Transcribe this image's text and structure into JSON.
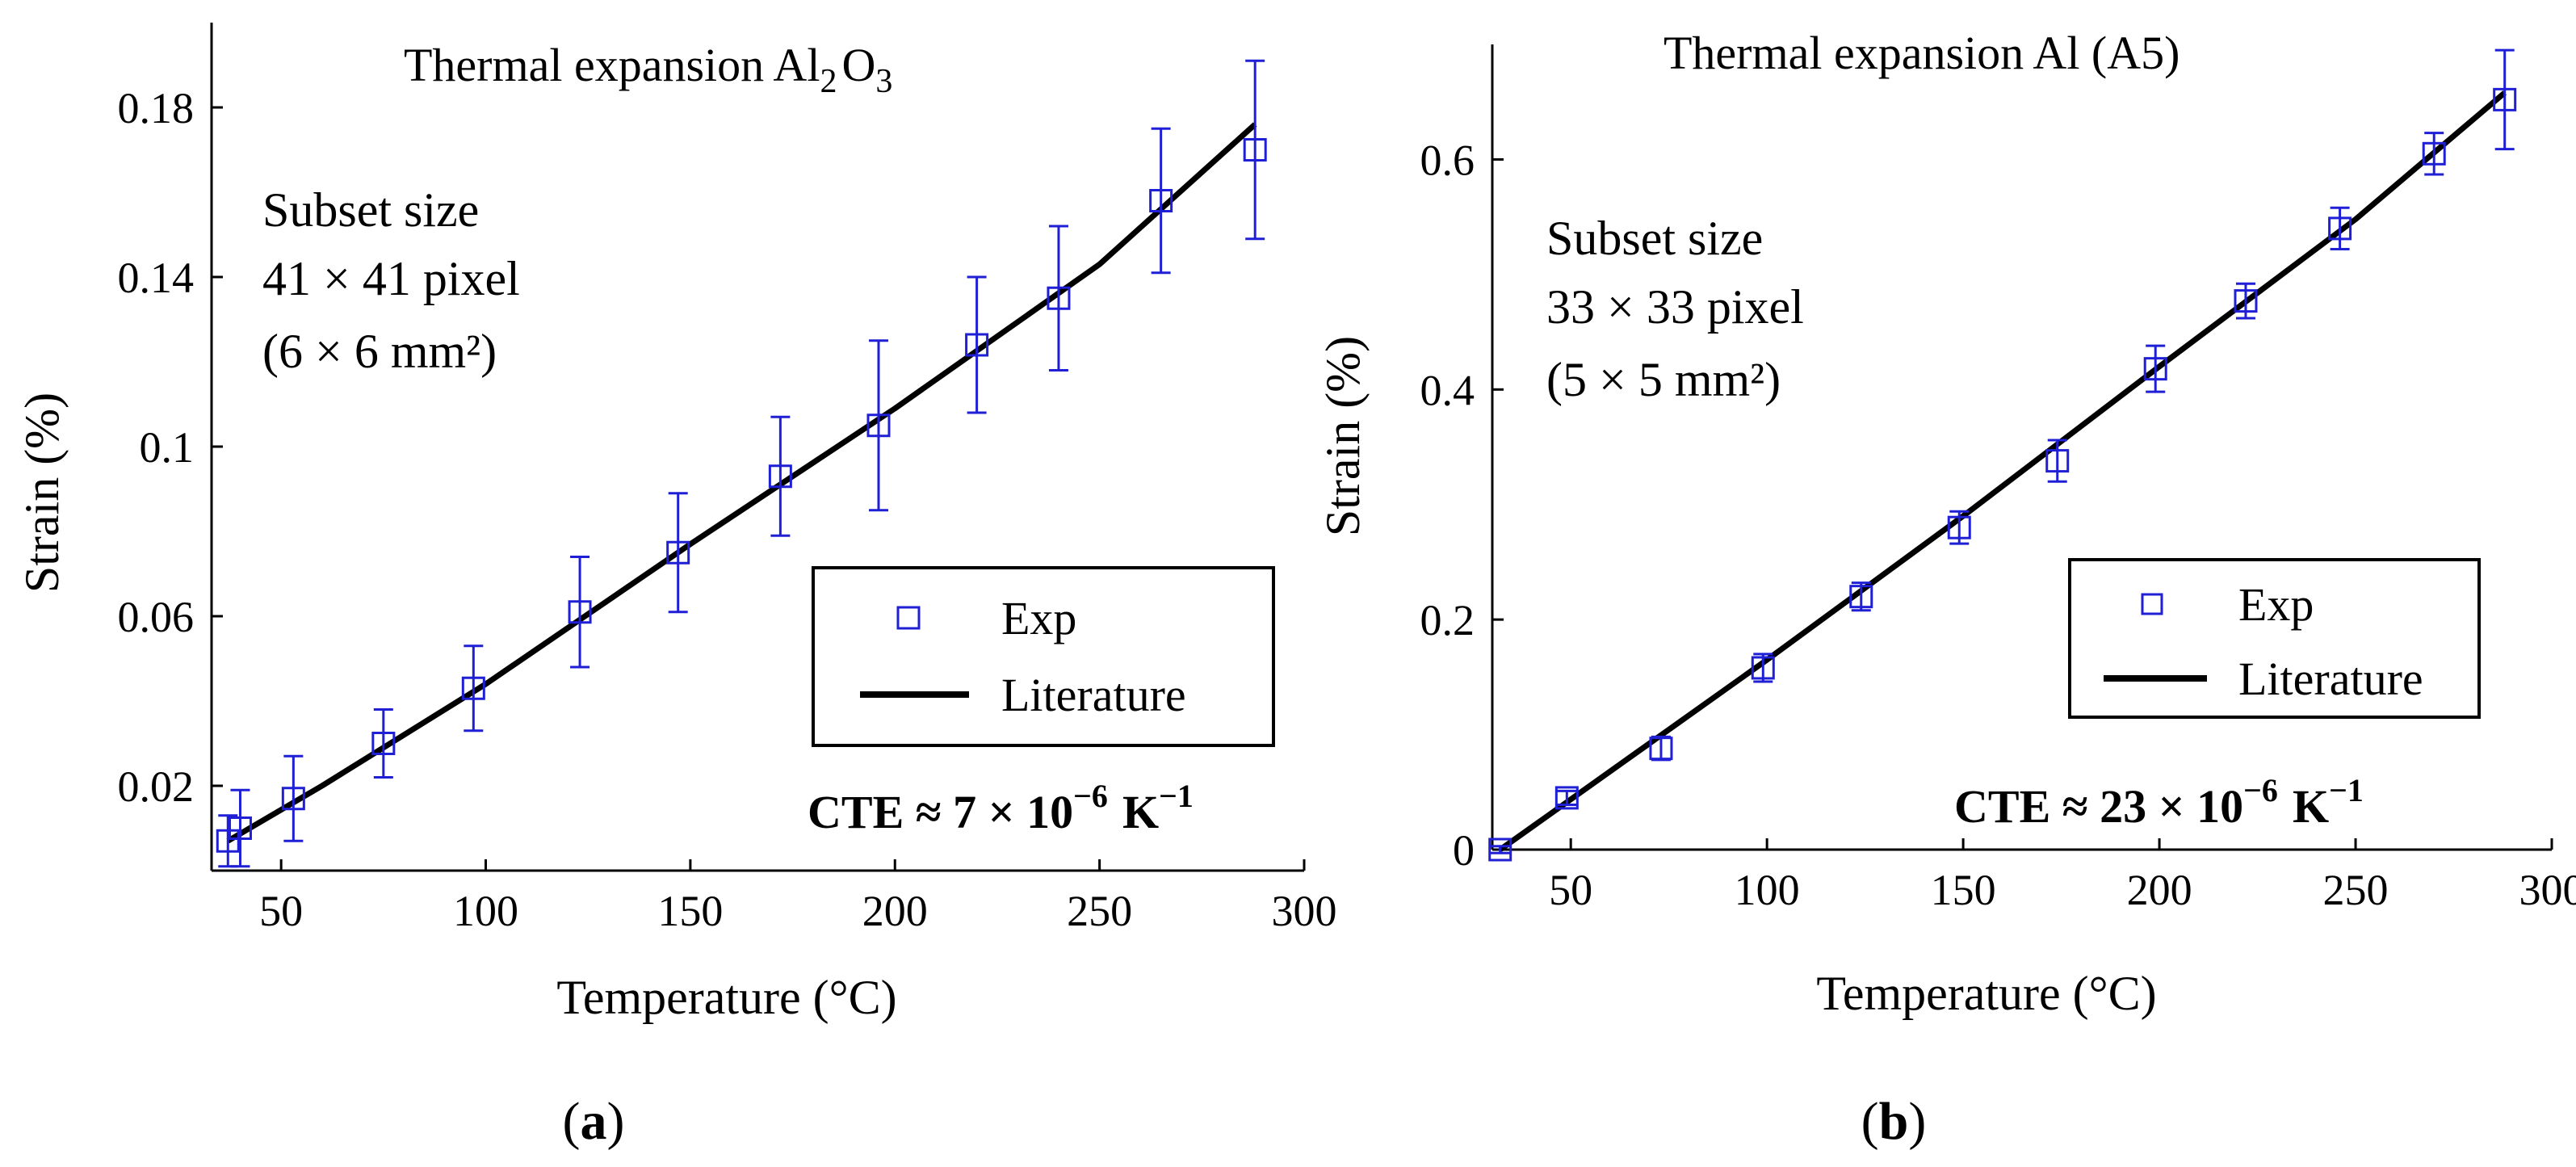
{
  "colors": {
    "exp": "#1f1fd6",
    "literature": "#000000",
    "axis": "#000000"
  },
  "chart_data": [
    {
      "id": "a",
      "type": "scatter",
      "title": "Thermal expansion Al",
      "title_sub": "2",
      "title_suffix": "O",
      "title_sub2": "3",
      "xlabel": "Temperature (°C)",
      "ylabel": "Strain (%)",
      "xlim": [
        33,
        300
      ],
      "ylim": [
        0,
        0.2
      ],
      "xticks": [
        50,
        100,
        150,
        200,
        250,
        300
      ],
      "xtick_labels": [
        "50",
        "100",
        "150",
        "200",
        "250",
        "300"
      ],
      "yticks": [
        0.02,
        0.06,
        0.1,
        0.14,
        0.18
      ],
      "ytick_labels": [
        "0.02",
        "0.06",
        "0.1",
        "0.14",
        "0.18"
      ],
      "annotation": [
        "Subset size",
        "41 × 41 pixel",
        "(6 × 6 mm²)"
      ],
      "cte_prefix": "CTE ≈ 7 × 10",
      "cte_exp": "−6",
      "cte_unit": "K",
      "cte_unit_exp": "−1",
      "legend": {
        "exp": "Exp",
        "literature": "Literature",
        "position": "lower-right"
      },
      "panel_label": "(a)",
      "panel_letter": "a",
      "series": [
        {
          "name": "Exp",
          "kind": "markers",
          "x": [
            37,
            40,
            53,
            75,
            97,
            123,
            147,
            172,
            196,
            220,
            240,
            265,
            288
          ],
          "y": [
            0.007,
            0.01,
            0.017,
            0.03,
            0.043,
            0.061,
            0.075,
            0.093,
            0.105,
            0.124,
            0.135,
            0.158,
            0.17
          ],
          "err": [
            0.006,
            0.009,
            0.01,
            0.008,
            0.01,
            0.013,
            0.014,
            0.014,
            0.02,
            0.016,
            0.017,
            0.017,
            0.021
          ]
        },
        {
          "name": "Literature",
          "kind": "line",
          "x": [
            37,
            60,
            100,
            150,
            200,
            250,
            288
          ],
          "y": [
            0.007,
            0.02,
            0.044,
            0.077,
            0.109,
            0.143,
            0.176
          ]
        }
      ]
    },
    {
      "id": "b",
      "type": "scatter",
      "title": "Thermal expansion Al (A5)",
      "xlabel": "Temperature (°C)",
      "ylabel": "Strain (%)",
      "xlim": [
        30,
        300
      ],
      "ylim": [
        0,
        0.7
      ],
      "xticks": [
        50,
        100,
        150,
        200,
        250,
        300
      ],
      "xtick_labels": [
        "50",
        "100",
        "150",
        "200",
        "250",
        "300"
      ],
      "yticks": [
        0,
        0.2,
        0.4,
        0.6
      ],
      "ytick_labels": [
        "0",
        "0.2",
        "0.4",
        "0.6"
      ],
      "annotation": [
        "Subset size",
        "33 × 33 pixel",
        "(5 × 5 mm²)"
      ],
      "cte_prefix": "CTE ≈ 23 × 10",
      "cte_exp": "−6",
      "cte_unit": "K",
      "cte_unit_exp": "−1",
      "legend": {
        "exp": "Exp",
        "literature": "Literature",
        "position": "lower-right"
      },
      "panel_label": "(b)",
      "panel_letter": "b",
      "series": [
        {
          "name": "Exp",
          "kind": "markers",
          "x": [
            32,
            49,
            73,
            99,
            124,
            149,
            174,
            199,
            222,
            246,
            270,
            288
          ],
          "y": [
            0.0,
            0.045,
            0.088,
            0.158,
            0.22,
            0.28,
            0.338,
            0.418,
            0.477,
            0.54,
            0.605,
            0.652
          ],
          "err": [
            0.003,
            0.006,
            0.01,
            0.012,
            0.012,
            0.014,
            0.018,
            0.02,
            0.015,
            0.018,
            0.018,
            0.043
          ]
        },
        {
          "name": "Literature",
          "kind": "line",
          "x": [
            32,
            100,
            150,
            200,
            250,
            288
          ],
          "y": [
            0.0,
            0.165,
            0.29,
            0.42,
            0.548,
            0.658
          ]
        }
      ]
    }
  ]
}
